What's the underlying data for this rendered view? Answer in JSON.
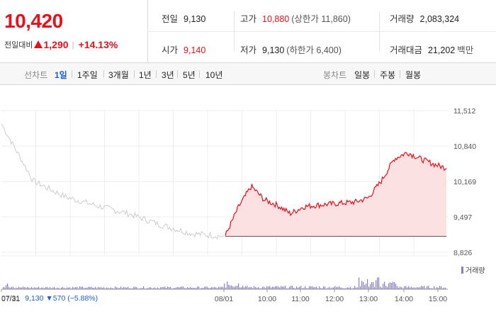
{
  "quote": {
    "current_price": "10,420",
    "change_label": "전일대비",
    "change_amount": "1,290",
    "change_rate": "+14.13%",
    "colors": {
      "up": "#e8101a",
      "down": "#1d5fd0"
    }
  },
  "stats": {
    "prev_close": {
      "label": "전일",
      "value": "9,130"
    },
    "open": {
      "label": "시가",
      "value": "9,140"
    },
    "high": {
      "label": "고가",
      "value": "10,880",
      "sub": "(상한가 11,860)"
    },
    "low": {
      "label": "저가",
      "value": "9,130",
      "sub": "(하한가 6,400)"
    },
    "volume": {
      "label": "거래량",
      "value": "2,083,324"
    },
    "trade_value": {
      "label": "거래대금",
      "value": "21,202",
      "unit": "백만"
    }
  },
  "tabs": {
    "line_label": "선차트",
    "line_periods": [
      "1일",
      "1주일",
      "3개월",
      "1년",
      "3년",
      "5년",
      "10년"
    ],
    "active_line_period": "1일",
    "candle_label": "봉차트",
    "candle_periods": [
      "일봉",
      "주봉",
      "월봉"
    ]
  },
  "chart_data": {
    "type": "line",
    "y_ticks": [
      "11,512",
      "10,840",
      "10,169",
      "9,497",
      "8,826"
    ],
    "ylim": [
      8826,
      11512
    ],
    "x_ticks": [
      "07/31",
      "08/01",
      "10:00",
      "11:00",
      "12:00",
      "13:00",
      "14:00",
      "15:00"
    ],
    "prev_close": 9130,
    "series": [
      {
        "x": [
          "07/31 09:00",
          "07/31 10:00",
          "07/31 11:00",
          "07/31 12:00",
          "07/31 13:00",
          "07/31 14:00",
          "07/31 15:00",
          "07/31 15:30"
        ],
        "values": [
          11260,
          10180,
          9880,
          9710,
          9560,
          9350,
          9180,
          9130
        ]
      },
      {
        "x": [
          "09:00",
          "09:10",
          "09:30",
          "09:45",
          "10:00",
          "10:15",
          "10:30",
          "11:00",
          "11:30",
          "12:00",
          "12:30",
          "13:00",
          "13:10",
          "13:30",
          "14:00",
          "14:30",
          "15:00",
          "15:20"
        ],
        "values": [
          9140,
          9680,
          10080,
          9820,
          9720,
          9560,
          9690,
          9720,
          9740,
          9760,
          9780,
          9860,
          10180,
          10600,
          10720,
          10600,
          10500,
          10420
        ]
      }
    ],
    "volume_label": "거래량",
    "volume_color": "#8a7fc2",
    "fill_color": "#fce1e3",
    "line_color": "#e8101a",
    "prev_line_color": "#cccccc"
  },
  "bottom_info": {
    "date": "07/31",
    "price": "9,130",
    "change": "▼570 (−5.88%)"
  }
}
